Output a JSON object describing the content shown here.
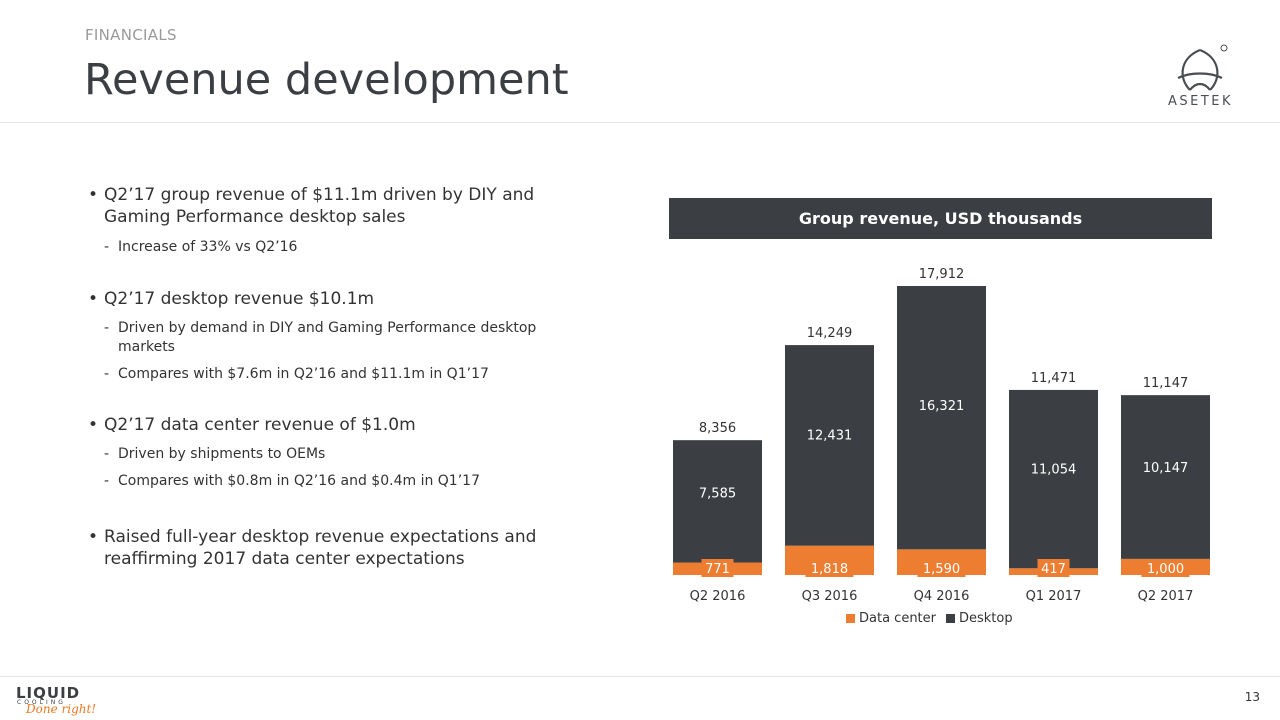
{
  "header": {
    "section": "FINANCIALS",
    "title": "Revenue development",
    "logo_text": "ASETEK"
  },
  "footer": {
    "page_number": "13",
    "logo_line1": "LIQUID",
    "logo_line2": "COOLING",
    "logo_line3": "Done right!"
  },
  "bullets": [
    {
      "text": "Q2’17 group revenue of $11.1m driven by DIY and Gaming Performance desktop sales",
      "subs": [
        "Increase of 33% vs Q2’16"
      ]
    },
    {
      "text": "Q2’17 desktop revenue $10.1m",
      "subs": [
        "Driven by demand in DIY and Gaming Performance desktop markets",
        "Compares with $7.6m in Q2’16 and $11.1m in Q1’17"
      ]
    },
    {
      "text": "Q2’17 data center revenue of $1.0m",
      "subs": [
        "Driven by shipments to OEMs",
        "Compares with $0.8m in Q2’16 and $0.4m in Q1’17"
      ]
    },
    {
      "text": "Raised full-year desktop revenue expectations and reaffirming 2017 data center expectations",
      "subs": []
    }
  ],
  "colors": {
    "data_center": "#ED7D31",
    "desktop": "#3B3E42"
  },
  "chart_data": {
    "type": "bar",
    "stacked": true,
    "title": "Group revenue, USD thousands",
    "categories": [
      "Q2 2016",
      "Q3 2016",
      "Q4 2016",
      "Q1 2017",
      "Q2 2017"
    ],
    "series": [
      {
        "name": "Data center",
        "values": [
          771,
          1818,
          1590,
          417,
          1000
        ],
        "labels": [
          "771",
          "1,818",
          "1,590",
          "417",
          "1,000"
        ]
      },
      {
        "name": "Desktop",
        "values": [
          7585,
          12431,
          16321,
          11054,
          10147
        ],
        "labels": [
          "7,585",
          "12,431",
          "16,321",
          "11,054",
          "10,147"
        ]
      }
    ],
    "totals": [
      "8,356",
      "14,249",
      "17,912",
      "11,471",
      "11,147"
    ],
    "total_values": [
      8356,
      14249,
      17912,
      11471,
      11147
    ],
    "ylim": [
      0,
      17912
    ],
    "legend_position": "bottom",
    "grid": false
  }
}
